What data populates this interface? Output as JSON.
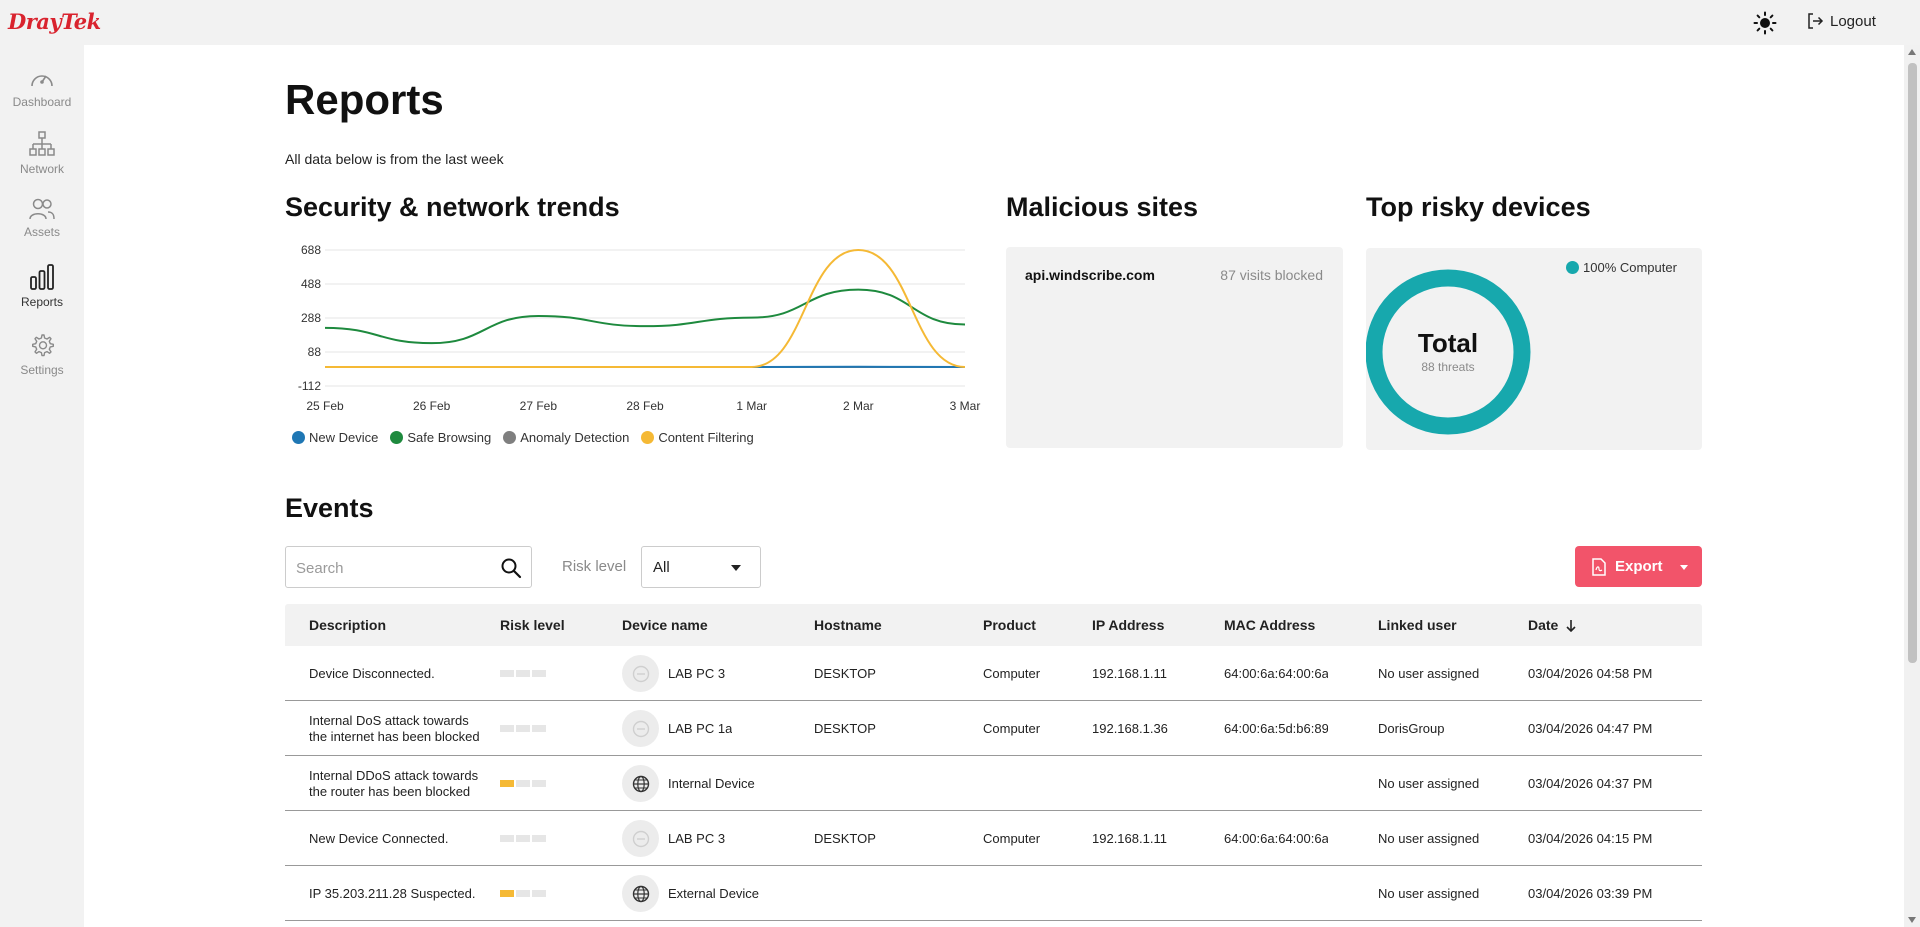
{
  "brand": {
    "logo_text": "DrayTek"
  },
  "header": {
    "logout_label": "Logout"
  },
  "sidebar": {
    "items": [
      {
        "label": "Dashboard",
        "icon": "gauge-icon",
        "active": false
      },
      {
        "label": "Network",
        "icon": "network-icon",
        "active": false
      },
      {
        "label": "Assets",
        "icon": "users-icon",
        "active": false
      },
      {
        "label": "Reports",
        "icon": "bar-chart-icon",
        "active": true
      },
      {
        "label": "Settings",
        "icon": "gear-icon",
        "active": false
      }
    ]
  },
  "page": {
    "title": "Reports",
    "subtitle": "All data below is from the last week"
  },
  "trends": {
    "title": "Security & network trends",
    "chart_data": {
      "type": "line",
      "x": [
        "25 Feb",
        "26 Feb",
        "27 Feb",
        "28 Feb",
        "1 Mar",
        "2 Mar",
        "3 Mar"
      ],
      "yticks": [
        688,
        488,
        288,
        88,
        -112
      ],
      "ylim": [
        -112,
        688
      ],
      "grid": true,
      "legend_position": "bottom",
      "series": [
        {
          "name": "New Device",
          "color": "#1f77b4",
          "values": [
            0,
            0,
            0,
            0,
            0,
            1,
            0
          ]
        },
        {
          "name": "Safe Browsing",
          "color": "#1e8a3e",
          "values": [
            230,
            140,
            300,
            240,
            290,
            455,
            250
          ]
        },
        {
          "name": "Anomaly Detection",
          "color": "#7f7f7f",
          "values": [
            0,
            0,
            0,
            0,
            0,
            0,
            0
          ]
        },
        {
          "name": "Content Filtering",
          "color": "#f5b935",
          "values": [
            0,
            0,
            0,
            0,
            0,
            688,
            0
          ]
        }
      ]
    }
  },
  "malicious": {
    "title": "Malicious sites",
    "site": "api.windscribe.com",
    "count_label": "87 visits blocked"
  },
  "risky": {
    "title": "Top risky devices",
    "legend_label": "100% Computer",
    "legend_color": "#17a8ad",
    "total_label": "Total",
    "total_sub": "88 threats",
    "chart_data": {
      "type": "pie",
      "categories": [
        "Computer"
      ],
      "values": [
        100
      ]
    }
  },
  "events": {
    "title": "Events",
    "search_placeholder": "Search",
    "risk_label": "Risk level",
    "risk_value": "All",
    "export_label": "Export",
    "columns": [
      "Description",
      "Risk level",
      "Device name",
      "Hostname",
      "Product",
      "IP Address",
      "MAC Address",
      "Linked user",
      "Date"
    ],
    "rows": [
      {
        "desc": "Device Disconnected.",
        "risk": 0,
        "icon": "computer-icon",
        "device": "LAB PC 3",
        "hostname": "DESKTOP",
        "product": "Computer",
        "ip": "192.168.1.11",
        "mac": "64:00:6a:64:00:6a:",
        "user": "No user assigned",
        "date": "03/04/2026 04:58 PM"
      },
      {
        "desc": "Internal DoS attack towards the internet has been blocked",
        "risk": 0,
        "icon": "computer-icon",
        "device": "LAB PC 1a",
        "hostname": "DESKTOP",
        "product": "Computer",
        "ip": "192.168.1.36",
        "mac": "64:00:6a:5d:b6:89",
        "user": "DorisGroup",
        "date": "03/04/2026 04:47 PM"
      },
      {
        "desc": "Internal DDoS attack towards the router has been blocked",
        "risk": 1,
        "icon": "globe-icon",
        "device": "Internal Device",
        "hostname": "",
        "product": "",
        "ip": "",
        "mac": "",
        "user": "No user assigned",
        "date": "03/04/2026 04:37 PM"
      },
      {
        "desc": "New Device Connected.",
        "risk": 0,
        "icon": "computer-icon",
        "device": "LAB PC 3",
        "hostname": "DESKTOP",
        "product": "Computer",
        "ip": "192.168.1.11",
        "mac": "64:00:6a:64:00:6a:",
        "user": "No user assigned",
        "date": "03/04/2026 04:15 PM"
      },
      {
        "desc": "IP 35.203.211.28 Suspected.",
        "risk": 1,
        "icon": "globe-icon",
        "device": "External Device",
        "hostname": "",
        "product": "",
        "ip": "",
        "mac": "",
        "user": "No user assigned",
        "date": "03/04/2026 03:39 PM"
      }
    ]
  }
}
